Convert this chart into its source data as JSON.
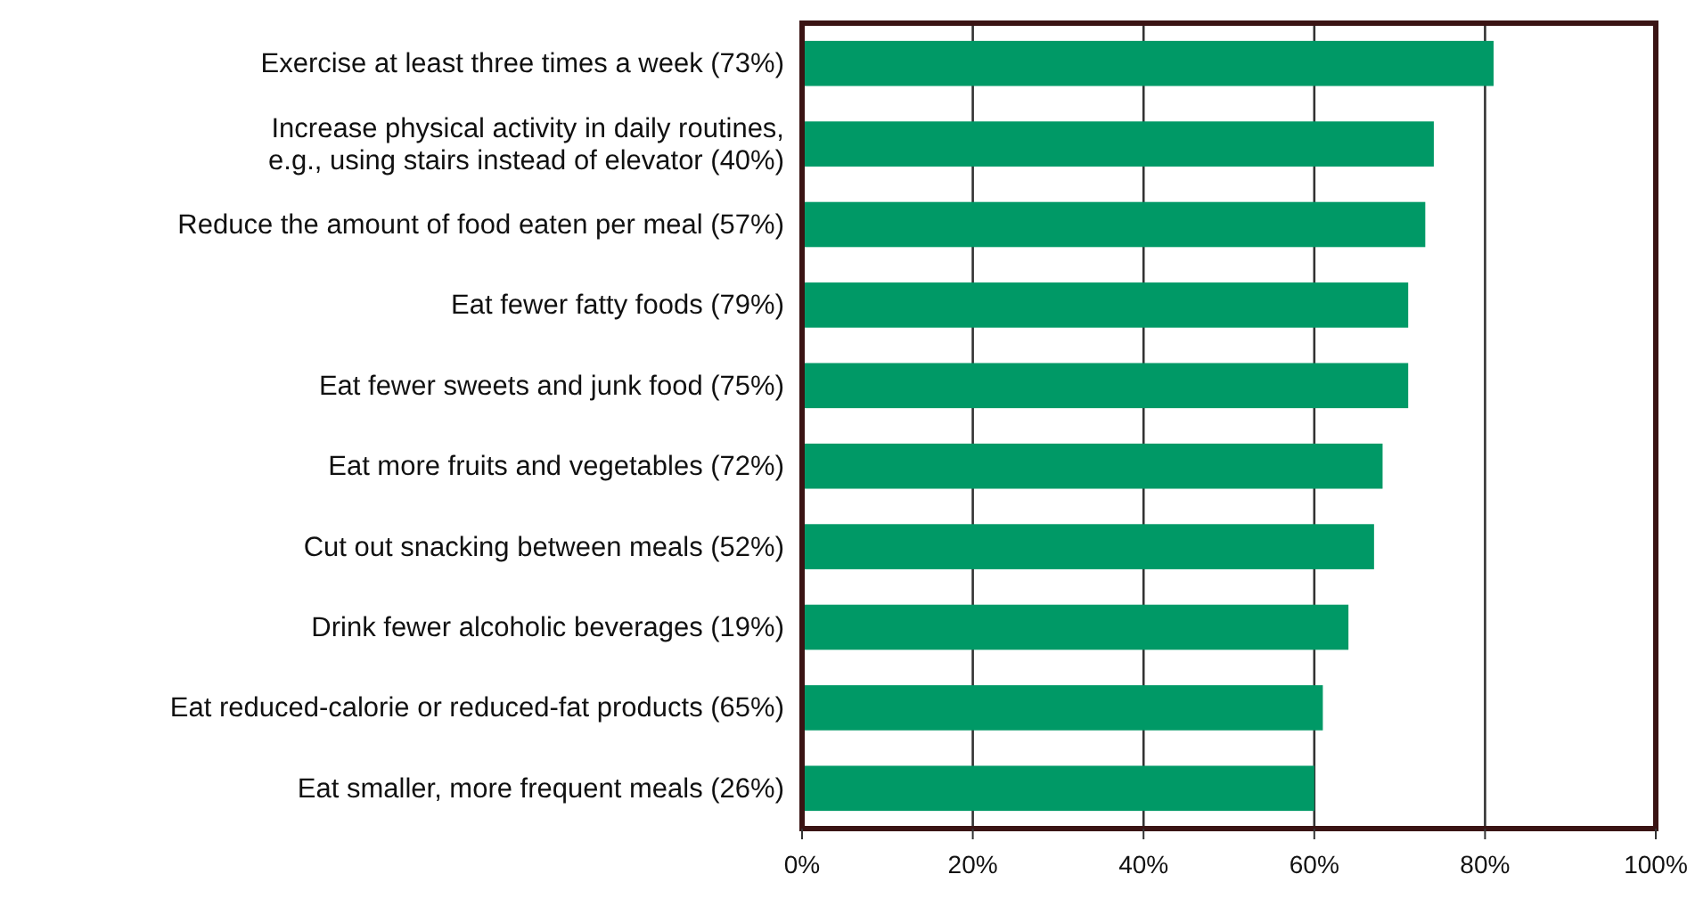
{
  "chart_data": {
    "type": "bar",
    "orientation": "horizontal",
    "categories": [
      "Exercise at least three times a week (73%)",
      "Increase physical activity in daily routines,\ne.g., using stairs instead of elevator (40%)",
      "Reduce the amount of food eaten per meal (57%)",
      "Eat fewer fatty foods (79%)",
      "Eat fewer sweets and junk food (75%)",
      "Eat more fruits and vegetables (72%)",
      "Cut out snacking between meals (52%)",
      "Drink fewer alcoholic beverages (19%)",
      "Eat reduced-calorie or reduced-fat products (65%)",
      "Eat smaller, more frequent meals (26%)"
    ],
    "values": [
      81,
      74,
      73,
      71,
      71,
      68,
      67,
      64,
      61,
      60
    ],
    "color": "#009966",
    "xlim": [
      0,
      100
    ],
    "xticks": [
      {
        "value": 0,
        "label": "0%"
      },
      {
        "value": 20,
        "label": "20%"
      },
      {
        "value": 40,
        "label": "40%"
      },
      {
        "value": 60,
        "label": "60%"
      },
      {
        "value": 80,
        "label": "80%"
      },
      {
        "value": 100,
        "label": "100%"
      }
    ],
    "grid": "x"
  }
}
